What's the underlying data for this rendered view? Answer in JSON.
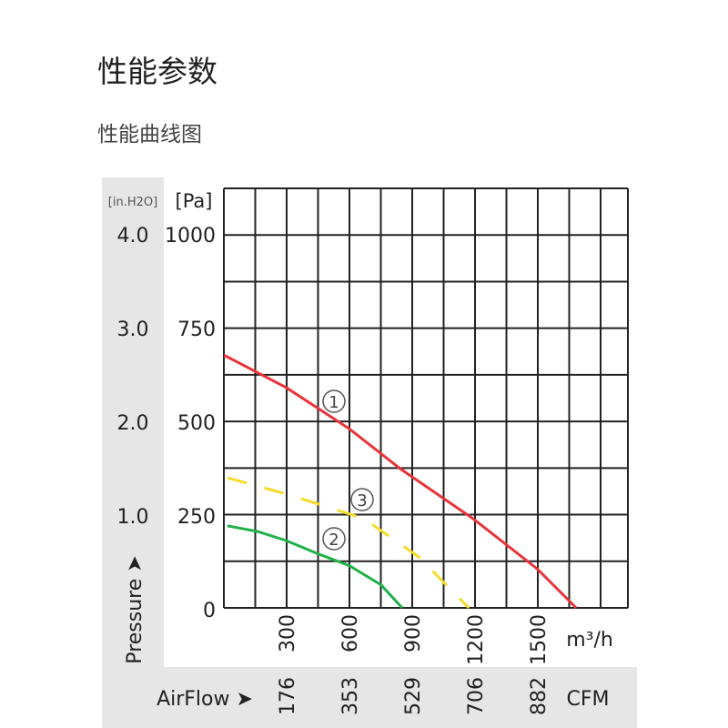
{
  "page": {
    "title": "性能参数",
    "subtitle": "性能曲线图"
  },
  "chart_data": {
    "type": "line",
    "y_left_unit": "[in.H2O]",
    "y_right_unit": "[Pa]",
    "y_in_ticks": [
      "4.0",
      "3.0",
      "2.0",
      "1.0"
    ],
    "y_pa_ticks": [
      "1000",
      "750",
      "500",
      "250",
      "0"
    ],
    "ylabel": "Pressure ➤",
    "xlabel": "AirFlow ➤",
    "x_unit": "m³/h",
    "x_cfm_unit": "CFM",
    "x_ticks": [
      "300",
      "600",
      "900",
      "1200",
      "1500"
    ],
    "x_cfm_ticks": [
      "176",
      "353",
      "529",
      "706",
      "882"
    ],
    "xlim": [
      0,
      1930
    ],
    "ylim": [
      0,
      1125
    ],
    "grid": true,
    "series": [
      {
        "name": "①",
        "color": "#e8343a",
        "dashed": false,
        "points": [
          [
            0,
            678
          ],
          [
            300,
            590
          ],
          [
            600,
            480
          ],
          [
            843,
            373
          ],
          [
            1191,
            239
          ],
          [
            1496,
            105
          ],
          [
            1683,
            0
          ]
        ]
      },
      {
        "name": "②",
        "color": "#22b04a",
        "dashed": false,
        "points": [
          [
            17,
            220
          ],
          [
            160,
            205
          ],
          [
            300,
            180
          ],
          [
            450,
            145
          ],
          [
            600,
            113
          ],
          [
            750,
            62
          ],
          [
            852,
            0
          ]
        ]
      },
      {
        "name": "③",
        "color": "#f5dc2a",
        "dashed": true,
        "points": [
          [
            17,
            349
          ],
          [
            300,
            305
          ],
          [
            500,
            270
          ],
          [
            670,
            239
          ],
          [
            930,
            137
          ],
          [
            1100,
            40
          ],
          [
            1170,
            0
          ]
        ]
      }
    ]
  }
}
